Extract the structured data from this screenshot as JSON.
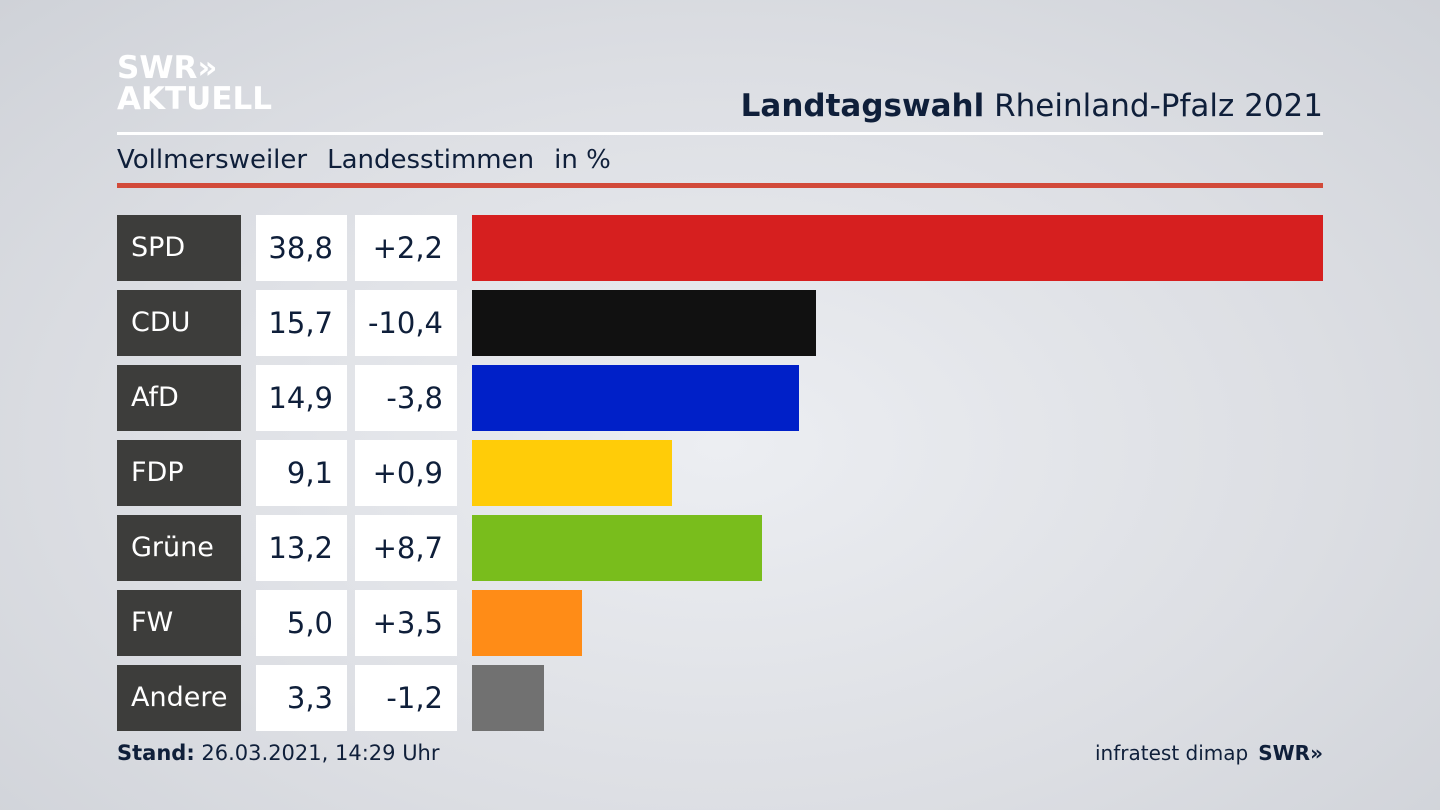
{
  "logo": {
    "line1": "SWR»",
    "line2": "AKTUELL"
  },
  "header": {
    "title_bold": "Landtagswahl",
    "title_rest": "Rheinland-Pfalz 2021"
  },
  "subtitle": {
    "place": "Vollmersweiler",
    "type": "Landesstimmen",
    "unit": "in %"
  },
  "footer": {
    "stand_label": "Stand:",
    "stand_value": "26.03.2021, 14:29 Uhr",
    "source": "infratest dimap",
    "brand": "SWR»"
  },
  "chart_data": {
    "type": "bar",
    "title": "Landtagswahl Rheinland-Pfalz 2021 – Vollmersweiler Landesstimmen in %",
    "categories": [
      "SPD",
      "CDU",
      "AfD",
      "FDP",
      "Grüne",
      "FW",
      "Andere"
    ],
    "values": [
      38.8,
      15.7,
      14.9,
      9.1,
      13.2,
      5.0,
      3.3
    ],
    "value_labels": [
      "38,8",
      "15,7",
      "14,9",
      "9,1",
      "13,2",
      "5,0",
      "3,3"
    ],
    "diff_labels": [
      "+2,2",
      "-10,4",
      "-3,8",
      "+0,9",
      "+8,7",
      "+3,5",
      "-1,2"
    ],
    "diffs": [
      2.2,
      -10.4,
      -3.8,
      0.9,
      8.7,
      3.5,
      -1.2
    ],
    "colors": [
      "#d61f1f",
      "#111111",
      "#0020c8",
      "#ffcc08",
      "#79bd1c",
      "#ff8c17",
      "#717171"
    ],
    "xlim": [
      0,
      38.8
    ]
  }
}
